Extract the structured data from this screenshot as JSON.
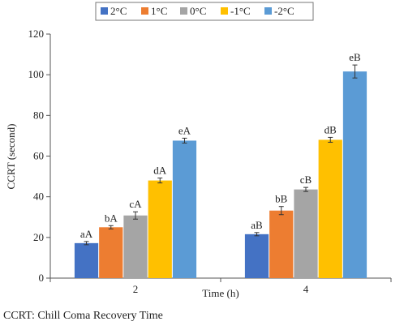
{
  "chart_data": {
    "type": "bar",
    "categories": [
      "2",
      "4"
    ],
    "series": [
      {
        "name": "2°C",
        "color": "#4472c4",
        "values": [
          17.2,
          21.6
        ],
        "errors": [
          0.8,
          0.8
        ],
        "labels": [
          "aA",
          "aB"
        ]
      },
      {
        "name": "1°C",
        "color": "#ed7d31",
        "values": [
          25.0,
          33.2
        ],
        "errors": [
          0.8,
          2.0
        ],
        "labels": [
          "bA",
          "bB"
        ]
      },
      {
        "name": "0°C",
        "color": "#a5a5a5",
        "values": [
          30.8,
          43.6
        ],
        "errors": [
          1.8,
          1.0
        ],
        "labels": [
          "cA",
          "cB"
        ]
      },
      {
        "name": "-1°C",
        "color": "#ffc000",
        "values": [
          48.0,
          68.0
        ],
        "errors": [
          1.2,
          1.2
        ],
        "labels": [
          "dA",
          "dB"
        ]
      },
      {
        "name": "-2°C",
        "color": "#5b9bd5",
        "values": [
          67.6,
          101.6
        ],
        "errors": [
          1.2,
          3.2
        ],
        "labels": [
          "eA",
          "eB"
        ]
      }
    ],
    "xlabel": "Time (h)",
    "ylabel": "CCRT (second)",
    "ylim": [
      0,
      120
    ],
    "yticks": [
      0,
      20,
      40,
      60,
      80,
      100,
      120
    ],
    "grid": false,
    "legend": "top"
  },
  "caption": "CCRT: Chill Coma Recovery Time"
}
